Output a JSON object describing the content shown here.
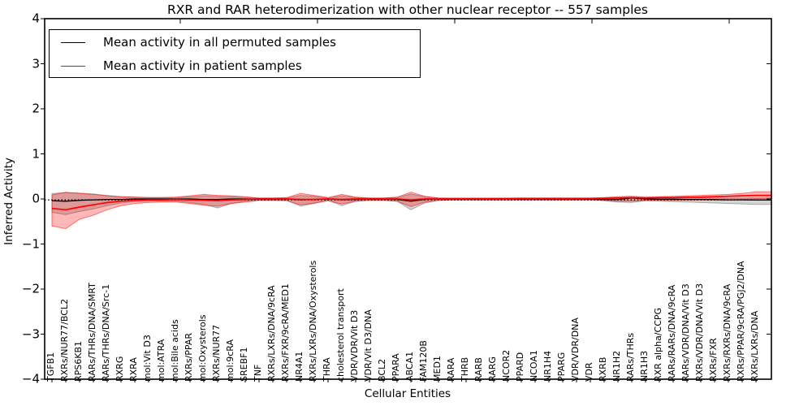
{
  "figure": {
    "title": "RXR and RAR heterodimerization with other nuclear receptor -- 557 samples"
  },
  "chart_data": {
    "type": "line",
    "title": "RXR and RAR heterodimerization with other nuclear receptor -- 557 samples",
    "xlabel": "Cellular Entities",
    "ylabel": "Inferred Activity",
    "ylim": [
      -4,
      4
    ],
    "yticks": [
      "4",
      "3",
      "2",
      "1",
      "0",
      "−1",
      "−2",
      "−3",
      "−4"
    ],
    "grid": false,
    "legend_position": "upper left",
    "zero_line": {
      "style": "dotted",
      "color": "#000000",
      "y": 0
    },
    "categories": [
      "TGFB1",
      "RXRs/NUR77/BCL2",
      "RPS6KB1",
      "RARs/THRs/DNA/SMRT",
      "RARs/THRs/DNA/Src-1",
      "RXRG",
      "RXRA",
      "mol:Vit D3",
      "mol:ATRA",
      "mol:Bile acids",
      "RXRs/PPAR",
      "mol:Oxysterols",
      "RXRs/NUR77",
      "mol:9cRA",
      "SREBF1",
      "TNF",
      "RXRs/LXRs/DNA/9cRA",
      "RXRs/FXR/9cRA/MED1",
      "NR4A1",
      "RXRs/LXRs/DNA/Oxysterols",
      "THRA",
      "cholesterol transport",
      "VDR/VDR/Vit D3",
      "VDR/Vit D3/DNA",
      "BCL2",
      "PPARA",
      "ABCA1",
      "FAM120B",
      "MED1",
      "RARA",
      "THRB",
      "RARB",
      "RARG",
      "NCOR2",
      "PPARD",
      "NCOA1",
      "NR1H4",
      "PPARG",
      "VDR/VDR/DNA",
      "VDR",
      "RXRB",
      "NR1H2",
      "RARs/THRs",
      "NR1H3",
      "RXR alpha/CCPG",
      "RARs/RARs/DNA/9cRA",
      "RARs/VDR/DNA/Vit D3",
      "RXRs/VDR/DNA/Vit D3",
      "RXRs/FXR",
      "RXRs/RXRs/DNA/9cRA",
      "RXRs/PPAR/9cRA/PGJ2/DNA",
      "RXRs/LXRs/DNA"
    ],
    "series": [
      {
        "name": "Mean activity in all permuted samples",
        "color": "#000000",
        "band_color": "rgba(0,0,0,0.17)",
        "band_edge": "rgba(0,0,0,0.28)",
        "values": [
          -0.04,
          -0.05,
          -0.03,
          -0.02,
          -0.01,
          -0.01,
          0,
          0,
          0,
          0,
          0,
          -0.01,
          -0.01,
          0,
          0,
          0,
          0,
          0,
          -0.02,
          -0.01,
          0,
          -0.02,
          -0.01,
          0,
          0,
          -0.01,
          -0.05,
          -0.01,
          0,
          0,
          0,
          0,
          0,
          0,
          0,
          0,
          0,
          0,
          0,
          0,
          -0.01,
          -0.01,
          0.02,
          0,
          -0.005,
          -0.005,
          -0.01,
          -0.01,
          -0.015,
          -0.02,
          -0.02,
          -0.025
        ],
        "band_upper": [
          0.12,
          0.14,
          0.13,
          0.11,
          0.08,
          0.05,
          0.04,
          0.03,
          0.03,
          0.03,
          0.05,
          0.07,
          0.06,
          0.05,
          0.03,
          0.02,
          0.02,
          0.02,
          0.08,
          0.06,
          0.02,
          0.07,
          0.03,
          0.02,
          0.02,
          0.03,
          0.11,
          0.05,
          0.02,
          0.015,
          0.015,
          0.015,
          0.015,
          0.015,
          0.015,
          0.015,
          0.015,
          0.015,
          0.015,
          0.015,
          0.02,
          0.03,
          0.04,
          0.025,
          0.025,
          0.02,
          0.02,
          0.02,
          0.02,
          0.02,
          0.02,
          0.02
        ],
        "band_lower": [
          -0.3,
          -0.35,
          -0.28,
          -0.22,
          -0.15,
          -0.09,
          -0.06,
          -0.05,
          -0.05,
          -0.05,
          -0.08,
          -0.12,
          -0.2,
          -0.1,
          -0.05,
          -0.03,
          -0.03,
          -0.03,
          -0.16,
          -0.1,
          -0.03,
          -0.15,
          -0.05,
          -0.03,
          -0.03,
          -0.05,
          -0.24,
          -0.09,
          -0.03,
          -0.025,
          -0.025,
          -0.025,
          -0.025,
          -0.025,
          -0.025,
          -0.025,
          -0.025,
          -0.025,
          -0.025,
          -0.025,
          -0.04,
          -0.07,
          -0.08,
          -0.04,
          -0.05,
          -0.06,
          -0.07,
          -0.08,
          -0.09,
          -0.1,
          -0.11,
          -0.12
        ]
      },
      {
        "name": "Mean activity in patient samples",
        "color": "#ff0000",
        "band_color": "rgba(255,0,0,0.28)",
        "band_edge": "rgba(255,0,0,0.50)",
        "values": [
          -0.21,
          -0.24,
          -0.18,
          -0.13,
          -0.08,
          -0.05,
          -0.03,
          -0.02,
          -0.02,
          -0.01,
          -0.02,
          -0.03,
          -0.04,
          -0.02,
          -0.01,
          0,
          0,
          0,
          -0.01,
          -0.01,
          0,
          -0.01,
          0,
          0,
          0,
          0,
          -0.02,
          0,
          0,
          0,
          0,
          0,
          0.005,
          0.005,
          0.01,
          0.01,
          0.01,
          0.01,
          0.01,
          0.01,
          0.015,
          0.02,
          0.03,
          0.02,
          0.03,
          0.03,
          0.04,
          0.04,
          0.05,
          0.06,
          0.07,
          0.08
        ],
        "band_upper": [
          0.09,
          0.15,
          0.12,
          0.1,
          0.07,
          0.05,
          0.04,
          0.03,
          0.03,
          0.04,
          0.07,
          0.1,
          0.08,
          0.07,
          0.05,
          0.02,
          0.02,
          0.03,
          0.12,
          0.08,
          0.03,
          0.1,
          0.04,
          0.02,
          0.02,
          0.04,
          0.15,
          0.06,
          0.02,
          0.02,
          0.02,
          0.02,
          0.02,
          0.02,
          0.02,
          0.02,
          0.02,
          0.02,
          0.02,
          0.02,
          0.03,
          0.05,
          0.06,
          0.04,
          0.05,
          0.06,
          0.07,
          0.08,
          0.09,
          0.1,
          0.12,
          0.16
        ],
        "band_lower": [
          -0.6,
          -0.66,
          -0.45,
          -0.36,
          -0.24,
          -0.15,
          -0.1,
          -0.08,
          -0.07,
          -0.07,
          -0.1,
          -0.14,
          -0.16,
          -0.1,
          -0.07,
          -0.03,
          -0.03,
          -0.04,
          -0.13,
          -0.09,
          -0.04,
          -0.11,
          -0.05,
          -0.03,
          -0.03,
          -0.05,
          -0.17,
          -0.07,
          -0.03,
          -0.02,
          -0.02,
          -0.02,
          -0.02,
          -0.02,
          -0.02,
          -0.02,
          -0.02,
          -0.02,
          -0.02,
          -0.02,
          -0.03,
          -0.05,
          -0.05,
          -0.03,
          -0.03,
          -0.03,
          -0.02,
          -0.02,
          -0.02,
          -0.02,
          -0.01,
          0.0
        ]
      }
    ]
  }
}
